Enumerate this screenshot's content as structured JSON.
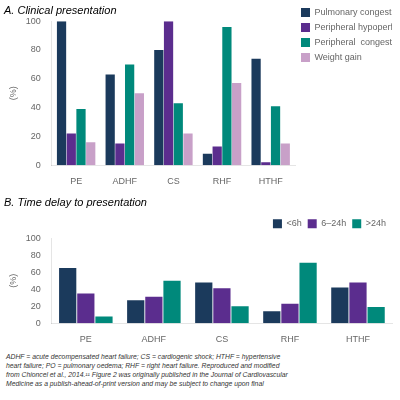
{
  "chart_data": [
    {
      "type": "bar",
      "title": "A. Clinical presentation",
      "categories": [
        "PE",
        "ADHF",
        "CS",
        "RHF",
        "HTHF"
      ],
      "series": [
        {
          "name": "Pulmonary congestion",
          "color": "#1b3a5c",
          "values": [
            100,
            63,
            80,
            8,
            74
          ]
        },
        {
          "name": "Peripheral hypoperfusion",
          "color": "#5b2d8e",
          "values": [
            22,
            15,
            100,
            13,
            2
          ]
        },
        {
          "name": "Peripheral  congestion",
          "color": "#00897b",
          "values": [
            39,
            70,
            43,
            96,
            41
          ]
        },
        {
          "name": "Weight gain",
          "color": "#c8a0c8",
          "values": [
            16,
            50,
            22,
            57,
            15
          ]
        }
      ],
      "ylabel": "(%)",
      "ylim": [
        0,
        100
      ],
      "yticks": [
        0,
        20,
        40,
        60,
        80,
        100
      ],
      "grid": false,
      "legend": "right"
    },
    {
      "type": "bar",
      "title": "B. Time delay to presentation",
      "categories": [
        "PE",
        "ADHF",
        "CS",
        "RHF",
        "HTHF"
      ],
      "series": [
        {
          "name": "<6h",
          "color": "#1b3a5c",
          "values": [
            65,
            27,
            48,
            14,
            42
          ]
        },
        {
          "name": "6–24h",
          "color": "#5b2d8e",
          "values": [
            35,
            31,
            41,
            23,
            48
          ]
        },
        {
          "name": ">24h",
          "color": "#00897b",
          "values": [
            8,
            50,
            20,
            71,
            19
          ]
        }
      ],
      "ylabel": "(%)",
      "ylim": [
        0,
        100
      ],
      "yticks": [
        0,
        20,
        40,
        60,
        80,
        100
      ],
      "grid": false,
      "legend": "upper right",
      "annotations": [
        "ADHF = acute decompensated heart failure; CS = cardiogenic shock; HTHF = hypertensive\nheart failure; PO = pulmonary oedema; RHF = right heart failure. Reproduced and modified\nfrom Chioncel et al., 2014.¹¹ Figure 2 was originally published in the Journal of Cardiovascular\nMedicine as a publish-ahead-of-print version and may be subject to change upon final"
      ]
    }
  ]
}
